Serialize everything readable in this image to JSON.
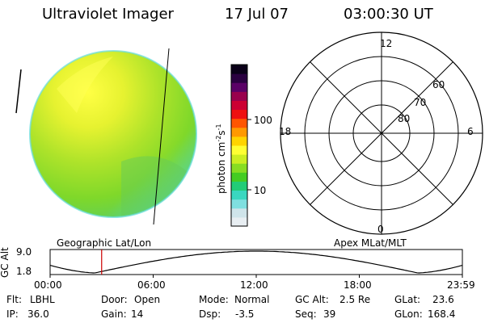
{
  "header": {
    "instrument": "Ultraviolet Imager",
    "date": "17 Jul 07",
    "time": "03:00:30 UT"
  },
  "colorbar": {
    "unit_label_main": "photon cm",
    "unit_exp1": "-2",
    "unit_mid": "s",
    "unit_exp2": "-1",
    "ticks": [
      {
        "value": 100,
        "label": "100"
      },
      {
        "value": 10,
        "label": "10"
      }
    ],
    "colors": [
      "#e8eef2",
      "#cfe4ea",
      "#7fdfe0",
      "#3ad7c0",
      "#22cc77",
      "#44cc22",
      "#88dd22",
      "#ccee22",
      "#ffff33",
      "#ffd400",
      "#ff9900",
      "#ff5500",
      "#ee1111",
      "#cc0033",
      "#99004d",
      "#5a0066",
      "#2a0040",
      "#0a0018"
    ]
  },
  "polar_plot": {
    "mlt_labels": [
      {
        "mlt": 12,
        "label": "12"
      },
      {
        "mlt": 6,
        "label": "6"
      },
      {
        "mlt": 18,
        "label": "18"
      },
      {
        "mlt": 0,
        "label": "0"
      }
    ],
    "mlat_labels": [
      {
        "mlat": 60,
        "label": "60"
      },
      {
        "mlat": 70,
        "label": "70"
      },
      {
        "mlat": 80,
        "label": "80"
      }
    ]
  },
  "captions": {
    "left": "Geographic Lat/Lon",
    "right": "Apex MLat/MLT"
  },
  "altitude_plot": {
    "ylabel": "GC Alt",
    "y_ticks": [
      "9.0",
      "1.8"
    ],
    "x_ticks": [
      "00:00",
      "06:00",
      "12:00",
      "18:00",
      "23:59"
    ],
    "current_time_hours": 3.0
  },
  "status": {
    "flt": {
      "label": "Flt:",
      "value": "LBHL"
    },
    "ip": {
      "label": "IP:",
      "value": "36.0"
    },
    "door": {
      "label": "Door:",
      "value": "Open"
    },
    "gain": {
      "label": "Gain:",
      "value": "14"
    },
    "mode": {
      "label": "Mode:",
      "value": "Normal"
    },
    "dsp": {
      "label": "Dsp:",
      "value": "-3.5"
    },
    "gc_alt": {
      "label": "GC Alt:",
      "value": "2.5 Re"
    },
    "seq": {
      "label": "Seq:",
      "value": "39"
    },
    "glat": {
      "label": "GLat:",
      "value": "23.6"
    },
    "glon": {
      "label": "GLon:",
      "value": "168.4"
    }
  },
  "accent_colors": {
    "marker": "#cc0000"
  }
}
